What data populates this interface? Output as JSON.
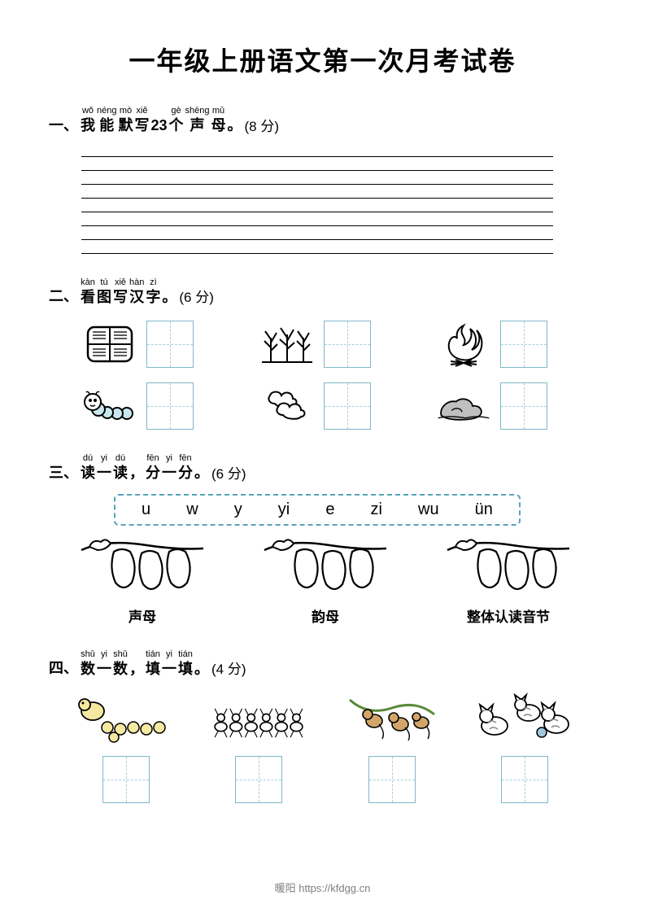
{
  "title": "一年级上册语文第一次月考试卷",
  "sections": {
    "s1": {
      "num": "一、",
      "chars": [
        {
          "py": "wǒ",
          "ch": "我"
        },
        {
          "py": "néng",
          "ch": "能"
        },
        {
          "py": "mò",
          "ch": "默"
        },
        {
          "py": "xiě",
          "ch": "写"
        }
      ],
      "mid": " 23 ",
      "chars2": [
        {
          "py": "gè",
          "ch": "个"
        },
        {
          "py": "shēng",
          "ch": "声"
        },
        {
          "py": "mǔ",
          "ch": "母"
        }
      ],
      "tail": "。",
      "points": "(8 分)",
      "line_count": 8
    },
    "s2": {
      "num": "二、",
      "chars": [
        {
          "py": "kàn",
          "ch": "看"
        },
        {
          "py": "tú",
          "ch": "图"
        },
        {
          "py": "xiě",
          "ch": "写"
        },
        {
          "py": "hàn",
          "ch": "汉"
        },
        {
          "py": "zì",
          "ch": "字"
        }
      ],
      "tail": "。",
      "points": "(6 分)",
      "items": [
        "field",
        "grain",
        "fire",
        "worm",
        "cloud",
        "stone"
      ]
    },
    "s3": {
      "num": "三、",
      "chars": [
        {
          "py": "dú",
          "ch": "读"
        },
        {
          "py": "yi",
          "ch": "一"
        },
        {
          "py": "dú",
          "ch": "读"
        }
      ],
      "comma": "，",
      "chars2": [
        {
          "py": "fēn",
          "ch": "分"
        },
        {
          "py": "yi",
          "ch": "一"
        },
        {
          "py": "fēn",
          "ch": "分"
        }
      ],
      "tail": "。",
      "points": "(6 分)",
      "box_items": [
        "u",
        "w",
        "y",
        "yi",
        "e",
        "zi",
        "wu",
        "ün"
      ],
      "categories": [
        "声母",
        "韵母",
        "整体认读音节"
      ]
    },
    "s4": {
      "num": "四、",
      "chars": [
        {
          "py": "shǔ",
          "ch": "数"
        },
        {
          "py": "yi",
          "ch": "一"
        },
        {
          "py": "shǔ",
          "ch": "数"
        }
      ],
      "comma": "，",
      "chars2": [
        {
          "py": "tián",
          "ch": "填"
        },
        {
          "py": "yi",
          "ch": "一"
        },
        {
          "py": "tián",
          "ch": "填"
        }
      ],
      "tail": "。",
      "points": "(4 分)",
      "items": [
        "ducks",
        "ants",
        "monkeys",
        "cats"
      ]
    }
  },
  "footer": "暖阳 https://kfdgg.cn",
  "colors": {
    "box_border": "#7fb8c9",
    "box_dash": "#a8d0dc",
    "dashed_border": "#5aa3bb",
    "footer": "#808080"
  }
}
